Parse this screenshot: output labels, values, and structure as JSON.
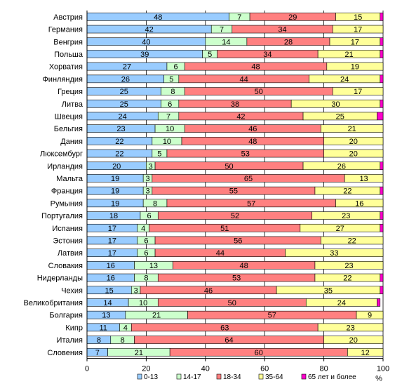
{
  "chart_data": {
    "type": "bar",
    "orientation": "horizontal",
    "stacked": true,
    "xunit": "%",
    "xlim": [
      0,
      100
    ],
    "xticks": [
      0,
      20,
      40,
      60,
      80,
      100
    ],
    "grid": true,
    "legend_position": "bottom",
    "categories": [
      "Австрия",
      "Германия",
      "Венгрия",
      "Польша",
      "Хорватия",
      "Финляндия",
      "Греция",
      "Литва",
      "Швеция",
      "Бельгия",
      "Дания",
      "Люксембург",
      "Ирландия",
      "Мальта",
      "Франция",
      "Румыния",
      "Португалия",
      "Испания",
      "Эстония",
      "Латвия",
      "Словакия",
      "Нидерланды",
      "Чехия",
      "Великобритания",
      "Болгария",
      "Кипр",
      "Италия",
      "Словения"
    ],
    "series": [
      {
        "name": "0-13",
        "color": "#99ccff",
        "values": [
          48,
          42,
          40,
          39,
          27,
          26,
          25,
          25,
          24,
          23,
          22,
          22,
          20,
          19,
          19,
          19,
          18,
          17,
          17,
          17,
          16,
          16,
          15,
          14,
          13,
          11,
          8,
          7
        ]
      },
      {
        "name": "14-17",
        "color": "#ccffcc",
        "values": [
          7,
          7,
          14,
          5,
          6,
          5,
          8,
          6,
          7,
          10,
          10,
          5,
          3,
          3,
          3,
          8,
          6,
          4,
          6,
          6,
          13,
          8,
          3,
          10,
          21,
          4,
          8,
          21
        ]
      },
      {
        "name": "18-34",
        "color": "#ff8080",
        "values": [
          29,
          34,
          28,
          34,
          48,
          44,
          50,
          38,
          42,
          46,
          48,
          53,
          50,
          65,
          55,
          57,
          52,
          51,
          56,
          44,
          48,
          53,
          46,
          50,
          57,
          63,
          64,
          60
        ]
      },
      {
        "name": "35-64",
        "color": "#ffff99",
        "values": [
          15,
          17,
          17,
          21,
          19,
          24,
          17,
          30,
          25,
          21,
          20,
          20,
          26,
          13,
          22,
          16,
          23,
          27,
          22,
          33,
          23,
          22,
          35,
          24,
          9,
          23,
          20,
          12
        ]
      },
      {
        "name": "65 лет и более",
        "color": "#ff00cc",
        "values": [
          1,
          1,
          1,
          2,
          1,
          1,
          1,
          1,
          2,
          1,
          1,
          1,
          1,
          1,
          1,
          1,
          1,
          1,
          1,
          1,
          1,
          1,
          1,
          1,
          1,
          1,
          1,
          1
        ]
      }
    ],
    "value_labels": [
      [
        "48",
        "7",
        "29",
        "15",
        ""
      ],
      [
        "42",
        "7",
        "34",
        "17",
        ""
      ],
      [
        "40",
        "14",
        "28",
        "17",
        ""
      ],
      [
        "39",
        "5",
        "34",
        "21",
        ""
      ],
      [
        "27",
        "6",
        "48",
        "19",
        ""
      ],
      [
        "26",
        "5",
        "44",
        "24",
        ""
      ],
      [
        "25",
        "8",
        "50",
        "17",
        ""
      ],
      [
        "25",
        "6",
        "38",
        "30",
        ""
      ],
      [
        "24",
        "7",
        "42",
        "25",
        ""
      ],
      [
        "23",
        "10",
        "46",
        "21",
        ""
      ],
      [
        "22",
        "10",
        "48",
        "20",
        ""
      ],
      [
        "22",
        "5",
        "53",
        "20",
        ""
      ],
      [
        "20",
        "3",
        "50",
        "26",
        ""
      ],
      [
        "19",
        "3",
        "65",
        "13",
        ""
      ],
      [
        "19",
        "3",
        "55",
        "22",
        ""
      ],
      [
        "19",
        "8",
        "57",
        "16",
        ""
      ],
      [
        "18",
        "6",
        "52",
        "23",
        ""
      ],
      [
        "17",
        "4",
        "51",
        "27",
        ""
      ],
      [
        "17",
        "6",
        "56",
        "22",
        ""
      ],
      [
        "17",
        "6",
        "44",
        "33",
        ""
      ],
      [
        "16",
        "13",
        "48",
        "23",
        ""
      ],
      [
        "16",
        "8",
        "53",
        "22",
        ""
      ],
      [
        "15",
        "3",
        "46",
        "35",
        ""
      ],
      [
        "14",
        "10",
        "50",
        "24",
        ""
      ],
      [
        "13",
        "21",
        "57",
        "9",
        ""
      ],
      [
        "11",
        "4",
        "63",
        "23",
        ""
      ],
      [
        "8",
        "8",
        "64",
        "20",
        ""
      ],
      [
        "7",
        "21",
        "60",
        "12",
        ""
      ]
    ]
  }
}
